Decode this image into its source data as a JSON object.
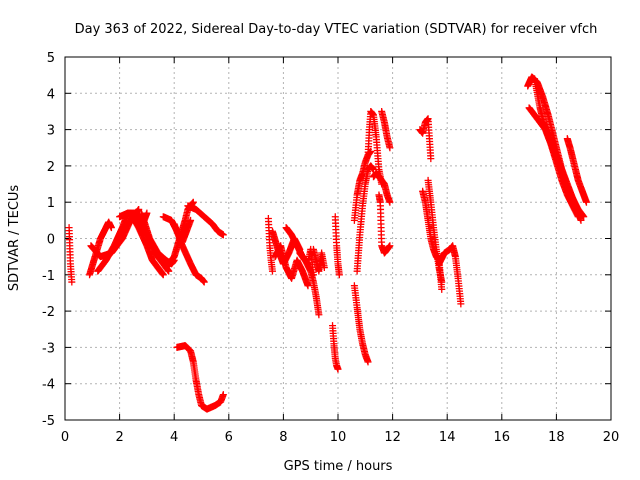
{
  "chart_data": {
    "type": "scatter",
    "title": "Day 363 of 2022, Sidereal Day-to-day VTEC variation (SDTVAR) for receiver vfch",
    "xlabel": "GPS time / hours",
    "ylabel": "SDTVAR / TECUs",
    "xlim": [
      0,
      20
    ],
    "ylim": [
      -5,
      5
    ],
    "xticks": [
      0,
      2,
      4,
      6,
      8,
      10,
      12,
      14,
      16,
      18,
      20
    ],
    "yticks": [
      -5,
      -4,
      -3,
      -2,
      -1,
      0,
      1,
      2,
      3,
      4,
      5
    ],
    "grid": true,
    "marker": "+",
    "color": "#ff0000",
    "segments": [
      {
        "x": [
          0.15,
          0.2,
          0.25
        ],
        "y": [
          0.3,
          -0.7,
          -1.2
        ]
      },
      {
        "x": [
          0.9,
          1.1,
          1.3,
          1.5,
          1.6,
          1.7
        ],
        "y": [
          -1.0,
          -0.5,
          0.0,
          0.3,
          0.45,
          0.3
        ]
      },
      {
        "x": [
          0.95,
          1.3,
          1.7,
          2.1,
          2.4,
          2.7
        ],
        "y": [
          -0.2,
          -0.5,
          -0.4,
          0.0,
          0.5,
          0.8
        ]
      },
      {
        "x": [
          1.2,
          1.5,
          1.8,
          2.1,
          2.3,
          2.5,
          2.8,
          3.0
        ],
        "y": [
          -0.9,
          -0.6,
          -0.2,
          0.3,
          0.7,
          0.6,
          0.3,
          0.7
        ]
      },
      {
        "x": [
          2.0,
          2.3,
          2.6,
          2.9,
          3.2,
          3.4,
          3.6,
          3.8
        ],
        "y": [
          0.6,
          0.7,
          0.7,
          0.3,
          -0.2,
          -0.5,
          -0.7,
          -0.9
        ]
      },
      {
        "x": [
          2.4,
          2.7,
          3.0,
          3.2,
          3.4,
          3.6
        ],
        "y": [
          0.7,
          0.3,
          -0.2,
          -0.6,
          -0.8,
          -1.0
        ]
      },
      {
        "x": [
          2.8,
          3.1,
          3.4,
          3.7,
          3.9,
          4.0
        ],
        "y": [
          0.7,
          0.0,
          -0.4,
          -0.6,
          -0.7,
          -0.6
        ]
      },
      {
        "x": [
          3.6,
          3.9,
          4.1,
          4.3,
          4.5,
          4.6
        ],
        "y": [
          0.6,
          0.5,
          0.2,
          -0.1,
          0.3,
          0.5
        ]
      },
      {
        "x": [
          3.7,
          4.0,
          4.2,
          4.4,
          4.5,
          4.7
        ],
        "y": [
          -0.8,
          -0.5,
          0.0,
          0.5,
          0.8,
          1.0
        ]
      },
      {
        "x": [
          4.0,
          4.3,
          4.6,
          4.8,
          5.0,
          5.1
        ],
        "y": [
          0.4,
          -0.2,
          -0.7,
          -1.0,
          -1.1,
          -1.2
        ]
      },
      {
        "x": [
          4.5,
          4.8,
          5.1,
          5.4,
          5.6,
          5.8
        ],
        "y": [
          0.9,
          0.8,
          0.6,
          0.4,
          0.2,
          0.1
        ]
      },
      {
        "x": [
          4.1,
          4.4,
          4.6,
          4.7,
          4.8,
          4.9,
          5.0,
          5.2,
          5.5,
          5.7,
          5.8
        ],
        "y": [
          -3.0,
          -2.95,
          -3.1,
          -3.4,
          -3.9,
          -4.3,
          -4.6,
          -4.7,
          -4.6,
          -4.5,
          -4.3
        ]
      },
      {
        "x": [
          7.45,
          7.5,
          7.55,
          7.6
        ],
        "y": [
          0.55,
          -0.2,
          -0.6,
          -0.9
        ]
      },
      {
        "x": [
          7.6,
          7.8,
          8.0,
          8.2,
          8.4,
          8.6
        ],
        "y": [
          0.2,
          -0.3,
          -0.7,
          -0.4,
          0.0,
          -0.3
        ]
      },
      {
        "x": [
          7.7,
          7.9,
          8.1,
          8.3,
          8.5,
          8.7,
          8.9
        ],
        "y": [
          -0.5,
          -0.2,
          -0.8,
          -1.1,
          -0.6,
          -0.9,
          -1.3
        ]
      },
      {
        "x": [
          8.1,
          8.3,
          8.5,
          8.7,
          8.9,
          9.0,
          9.1
        ],
        "y": [
          0.3,
          0.1,
          -0.2,
          -0.5,
          -0.7,
          -0.3,
          -1.0
        ]
      },
      {
        "x": [
          8.6,
          8.8,
          9.0,
          9.1,
          9.2,
          9.3
        ],
        "y": [
          -0.4,
          -0.6,
          -0.9,
          -1.2,
          -1.6,
          -2.1
        ]
      },
      {
        "x": [
          9.1,
          9.2,
          9.3,
          9.4,
          9.5
        ],
        "y": [
          -0.3,
          -0.6,
          -0.9,
          -0.4,
          -0.8
        ]
      },
      {
        "x": [
          9.8,
          9.85,
          9.9,
          9.95,
          10.0
        ],
        "y": [
          -2.4,
          -2.9,
          -3.3,
          -3.5,
          -3.6
        ]
      },
      {
        "x": [
          9.9,
          9.95,
          10.0,
          10.05
        ],
        "y": [
          0.6,
          -0.2,
          -0.7,
          -1.0
        ]
      },
      {
        "x": [
          10.6,
          10.7,
          10.8,
          10.9,
          11.0,
          11.1
        ],
        "y": [
          -1.3,
          -1.9,
          -2.5,
          -2.9,
          -3.2,
          -3.4
        ]
      },
      {
        "x": [
          10.6,
          10.7,
          10.8,
          10.9,
          11.0,
          11.1,
          11.2
        ],
        "y": [
          0.5,
          1.2,
          1.6,
          1.8,
          2.1,
          2.3,
          2.4
        ]
      },
      {
        "x": [
          10.7,
          10.8,
          10.9,
          11.0,
          11.1,
          11.2,
          11.3
        ],
        "y": [
          -0.9,
          0.1,
          0.9,
          1.5,
          1.9,
          2.0,
          1.9
        ]
      },
      {
        "x": [
          11.1,
          11.15,
          11.2,
          11.3,
          11.4,
          11.5,
          11.6
        ],
        "y": [
          2.3,
          3.0,
          3.5,
          3.4,
          2.8,
          1.9,
          1.5
        ]
      },
      {
        "x": [
          11.3,
          11.4,
          11.5,
          11.6,
          11.7,
          11.8,
          11.9
        ],
        "y": [
          1.7,
          1.8,
          1.7,
          1.6,
          1.5,
          1.2,
          1.0
        ]
      },
      {
        "x": [
          11.5,
          11.55,
          11.6,
          11.7,
          11.8,
          11.9
        ],
        "y": [
          1.2,
          1.0,
          -0.2,
          -0.4,
          -0.3,
          -0.2
        ]
      },
      {
        "x": [
          11.6,
          11.7,
          11.8,
          11.9
        ],
        "y": [
          3.5,
          3.2,
          2.8,
          2.5
        ]
      },
      {
        "x": [
          13.0,
          13.1,
          13.2,
          13.3,
          13.4
        ],
        "y": [
          3.0,
          2.9,
          3.2,
          3.3,
          2.2
        ]
      },
      {
        "x": [
          13.1,
          13.2,
          13.3,
          13.4,
          13.5,
          13.6,
          13.7,
          13.8
        ],
        "y": [
          1.3,
          1.0,
          0.5,
          0.0,
          -0.3,
          -0.5,
          -0.6,
          -1.4
        ]
      },
      {
        "x": [
          13.3,
          13.4,
          13.5,
          13.6,
          13.7,
          13.8
        ],
        "y": [
          1.6,
          1.0,
          0.3,
          -0.3,
          -0.8,
          -1.2
        ]
      },
      {
        "x": [
          13.7,
          13.9,
          14.1,
          14.2,
          14.3,
          14.4,
          14.5
        ],
        "y": [
          -0.7,
          -0.4,
          -0.3,
          -0.2,
          -0.5,
          -1.1,
          -1.8
        ]
      },
      {
        "x": [
          16.95,
          17.1,
          17.3,
          17.5,
          17.7,
          17.9,
          18.1,
          18.3
        ],
        "y": [
          4.2,
          4.45,
          4.3,
          3.9,
          3.4,
          2.8,
          2.2,
          1.6
        ]
      },
      {
        "x": [
          17.0,
          17.2,
          17.4,
          17.6,
          17.8,
          18.0,
          18.2,
          18.4,
          18.6,
          18.8
        ],
        "y": [
          3.6,
          3.4,
          3.2,
          3.0,
          2.6,
          2.1,
          1.6,
          1.2,
          0.9,
          0.6
        ]
      },
      {
        "x": [
          17.2,
          17.4,
          17.6,
          17.8,
          18.0,
          18.2,
          18.4,
          18.6,
          18.8,
          19.0
        ],
        "y": [
          4.4,
          3.6,
          3.0,
          2.6,
          2.2,
          1.8,
          1.4,
          1.1,
          0.8,
          0.6
        ]
      },
      {
        "x": [
          17.5,
          17.7,
          17.9,
          18.1,
          18.3,
          18.5,
          18.7,
          18.9
        ],
        "y": [
          3.2,
          2.9,
          2.5,
          2.1,
          1.7,
          1.3,
          0.9,
          0.5
        ]
      },
      {
        "x": [
          18.4,
          18.5,
          18.6,
          18.7,
          18.8,
          18.9,
          19.0,
          19.1
        ],
        "y": [
          2.75,
          2.5,
          2.2,
          1.9,
          1.6,
          1.4,
          1.2,
          1.0
        ]
      }
    ]
  }
}
